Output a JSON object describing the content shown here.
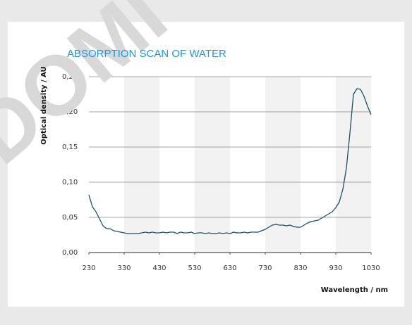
{
  "watermark": "DOMI",
  "chart_data": {
    "type": "line",
    "title": "ABSORPTION SCAN OF WATER",
    "xlabel": "Wavelength / nm",
    "ylabel": "Optical density / AU",
    "xlim": [
      230,
      1030
    ],
    "ylim": [
      0,
      0.25
    ],
    "xticks": [
      230,
      330,
      430,
      530,
      630,
      730,
      830,
      930,
      1030
    ],
    "yticks": [
      {
        "value": 0,
        "label": "0,00"
      },
      {
        "value": 0.05,
        "label": "0,05"
      },
      {
        "value": 0.1,
        "label": "0,10"
      },
      {
        "value": 0.15,
        "label": "0,15"
      },
      {
        "value": 0.2,
        "label": "0,20"
      },
      {
        "value": 0.25,
        "label": "0,25"
      }
    ],
    "grid": true,
    "banded": true,
    "band_color": "#f2f2f2",
    "x": [
      230,
      240,
      250,
      260,
      270,
      280,
      290,
      300,
      310,
      320,
      330,
      340,
      350,
      360,
      370,
      380,
      390,
      400,
      410,
      420,
      430,
      440,
      450,
      460,
      470,
      480,
      490,
      500,
      510,
      520,
      530,
      540,
      550,
      560,
      570,
      580,
      590,
      600,
      610,
      620,
      630,
      640,
      650,
      660,
      670,
      680,
      690,
      700,
      710,
      720,
      730,
      740,
      750,
      760,
      770,
      780,
      790,
      800,
      810,
      820,
      830,
      840,
      850,
      860,
      870,
      880,
      890,
      900,
      910,
      920,
      930,
      940,
      950,
      960,
      970,
      980,
      990,
      1000,
      1010,
      1020,
      1030
    ],
    "series": [
      {
        "name": "Water",
        "color": "#1d4d68",
        "values": [
          0.082,
          0.065,
          0.058,
          0.048,
          0.038,
          0.034,
          0.034,
          0.031,
          0.03,
          0.029,
          0.028,
          0.027,
          0.027,
          0.027,
          0.027,
          0.028,
          0.029,
          0.028,
          0.029,
          0.028,
          0.028,
          0.029,
          0.028,
          0.029,
          0.029,
          0.027,
          0.029,
          0.028,
          0.028,
          0.029,
          0.027,
          0.028,
          0.028,
          0.027,
          0.028,
          0.027,
          0.027,
          0.028,
          0.027,
          0.028,
          0.027,
          0.029,
          0.028,
          0.028,
          0.029,
          0.028,
          0.029,
          0.029,
          0.029,
          0.031,
          0.033,
          0.036,
          0.039,
          0.04,
          0.039,
          0.039,
          0.038,
          0.039,
          0.037,
          0.036,
          0.036,
          0.039,
          0.042,
          0.044,
          0.045,
          0.046,
          0.049,
          0.052,
          0.055,
          0.058,
          0.064,
          0.072,
          0.09,
          0.12,
          0.17,
          0.225,
          0.233,
          0.232,
          0.222,
          0.208,
          0.196
        ]
      }
    ]
  }
}
